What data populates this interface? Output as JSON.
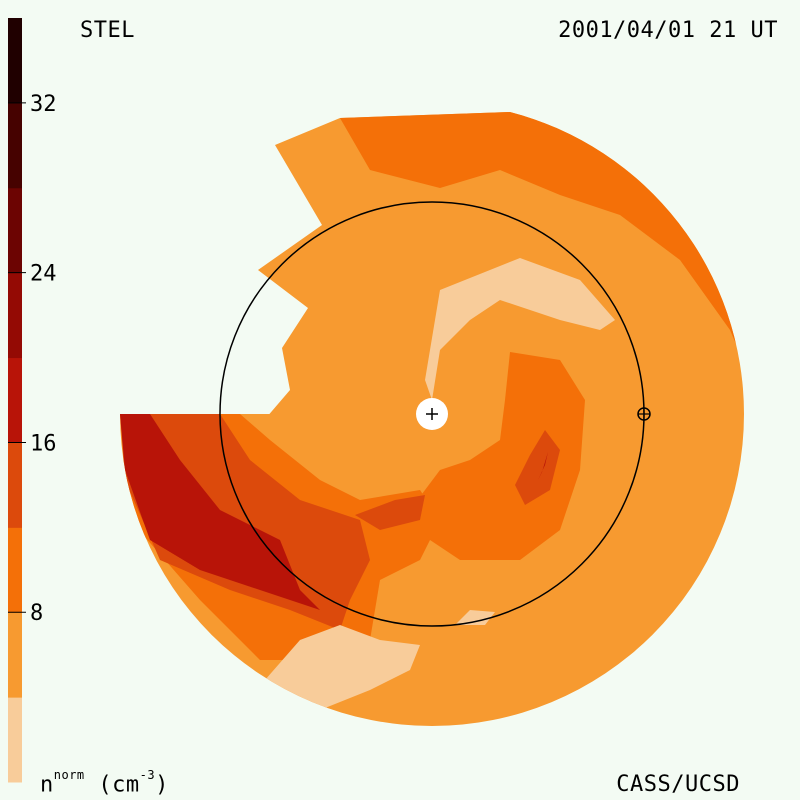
{
  "header": {
    "observatory": "STEL",
    "timestamp": "2001/04/01 21 UT"
  },
  "footer": {
    "credit": "CASS/UCSD",
    "unit_quantity": "n",
    "unit_sup": "norm",
    "unit_text": "(cm",
    "unit_exp": "-3",
    "unit_close": ")"
  },
  "chart_data": {
    "type": "heatmap",
    "title": "",
    "colorbar": {
      "ticks": [
        "8",
        "16",
        "24",
        "32"
      ],
      "tick_values": [
        8,
        16,
        24,
        32
      ],
      "range": [
        0,
        36
      ],
      "levels": [
        {
          "from": 0,
          "to": 4,
          "color": "#f8cc9a"
        },
        {
          "from": 4,
          "to": 8,
          "color": "#f79a30"
        },
        {
          "from": 8,
          "to": 12,
          "color": "#f47008"
        },
        {
          "from": 12,
          "to": 16,
          "color": "#dc4a0c"
        },
        {
          "from": 16,
          "to": 20,
          "color": "#b81408"
        },
        {
          "from": 20,
          "to": 24,
          "color": "#940a04"
        },
        {
          "from": 24,
          "to": 28,
          "color": "#6c0402"
        },
        {
          "from": 28,
          "to": 32,
          "color": "#460200"
        },
        {
          "from": 32,
          "to": 36,
          "color": "#200000"
        }
      ]
    }
  }
}
